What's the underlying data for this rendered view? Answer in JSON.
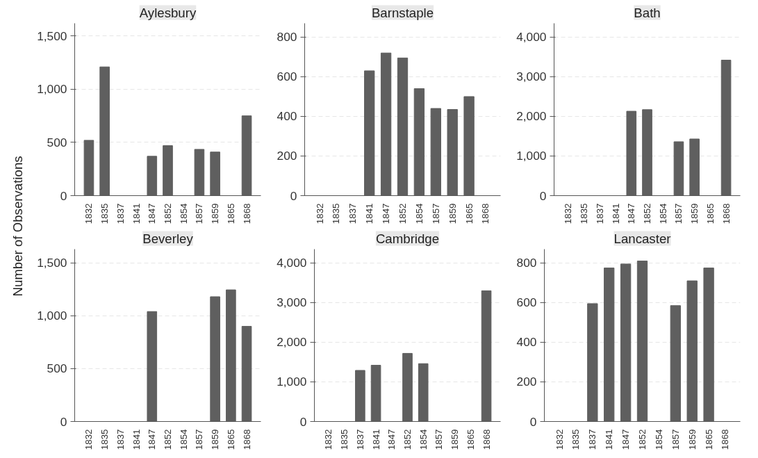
{
  "chart_data": [
    {
      "type": "bar",
      "title": "Aylesbury",
      "ylabel": "Number of Observations",
      "categories": [
        "1832",
        "1835",
        "1837",
        "1841",
        "1847",
        "1852",
        "1854",
        "1857",
        "1859",
        "1865",
        "1868"
      ],
      "values": [
        520,
        1210,
        null,
        null,
        370,
        470,
        null,
        435,
        410,
        null,
        750
      ],
      "color": "#5f5f5f",
      "ylim": [
        0,
        1620
      ],
      "yticks": [
        0,
        500,
        {
          "value": 1000,
          "label": "1,000"
        },
        {
          "value": 1500,
          "label": "1,500"
        }
      ],
      "grid": "y"
    },
    {
      "type": "bar",
      "title": "Barnstaple",
      "categories": [
        "1832",
        "1835",
        "1837",
        "1841",
        "1847",
        "1852",
        "1854",
        "1857",
        "1859",
        "1865",
        "1868"
      ],
      "values": [
        null,
        null,
        null,
        630,
        720,
        695,
        540,
        440,
        435,
        500,
        null
      ],
      "color": "#5f5f5f",
      "ylim": [
        0,
        870
      ],
      "yticks": [
        0,
        200,
        400,
        600,
        800
      ],
      "grid": "y"
    },
    {
      "type": "bar",
      "title": "Bath",
      "categories": [
        "1832",
        "1835",
        "1837",
        "1841",
        "1847",
        "1852",
        "1854",
        "1857",
        "1859",
        "1865",
        "1868"
      ],
      "values": [
        null,
        null,
        null,
        null,
        2130,
        2170,
        null,
        1360,
        1430,
        null,
        3420
      ],
      "color": "#5f5f5f",
      "ylim": [
        0,
        4350
      ],
      "yticks": [
        0,
        {
          "value": 1000,
          "label": "1,000"
        },
        {
          "value": 2000,
          "label": "2,000"
        },
        {
          "value": 3000,
          "label": "3,000"
        },
        {
          "value": 4000,
          "label": "4,000"
        }
      ],
      "grid": "y"
    },
    {
      "type": "bar",
      "title": "Beverley",
      "categories": [
        "1832",
        "1835",
        "1837",
        "1841",
        "1847",
        "1852",
        "1854",
        "1857",
        "1859",
        "1865",
        "1868"
      ],
      "values": [
        null,
        null,
        null,
        null,
        1040,
        null,
        null,
        null,
        1180,
        1245,
        900
      ],
      "color": "#5f5f5f",
      "ylim": [
        0,
        1630
      ],
      "yticks": [
        0,
        500,
        {
          "value": 1000,
          "label": "1,000"
        },
        {
          "value": 1500,
          "label": "1,500"
        }
      ],
      "grid": "y"
    },
    {
      "type": "bar",
      "title": "Cambridge",
      "categories": [
        "1832",
        "1835",
        "1837",
        "1841",
        "1847",
        "1852",
        "1854",
        "1857",
        "1859",
        "1865",
        "1868"
      ],
      "values": [
        null,
        null,
        1290,
        1420,
        null,
        1720,
        1460,
        null,
        null,
        null,
        3300
      ],
      "color": "#5f5f5f",
      "ylim": [
        0,
        4350
      ],
      "yticks": [
        0,
        {
          "value": 1000,
          "label": "1,000"
        },
        {
          "value": 2000,
          "label": "2,000"
        },
        {
          "value": 3000,
          "label": "3,000"
        },
        {
          "value": 4000,
          "label": "4,000"
        }
      ],
      "grid": "y"
    },
    {
      "type": "bar",
      "title": "Lancaster",
      "categories": [
        "1832",
        "1835",
        "1837",
        "1841",
        "1847",
        "1852",
        "1854",
        "1857",
        "1859",
        "1865",
        "1868"
      ],
      "values": [
        null,
        null,
        595,
        775,
        795,
        810,
        null,
        585,
        710,
        775,
        null
      ],
      "color": "#5f5f5f",
      "ylim": [
        0,
        870
      ],
      "yticks": [
        0,
        200,
        400,
        600,
        800
      ],
      "grid": "y"
    }
  ]
}
